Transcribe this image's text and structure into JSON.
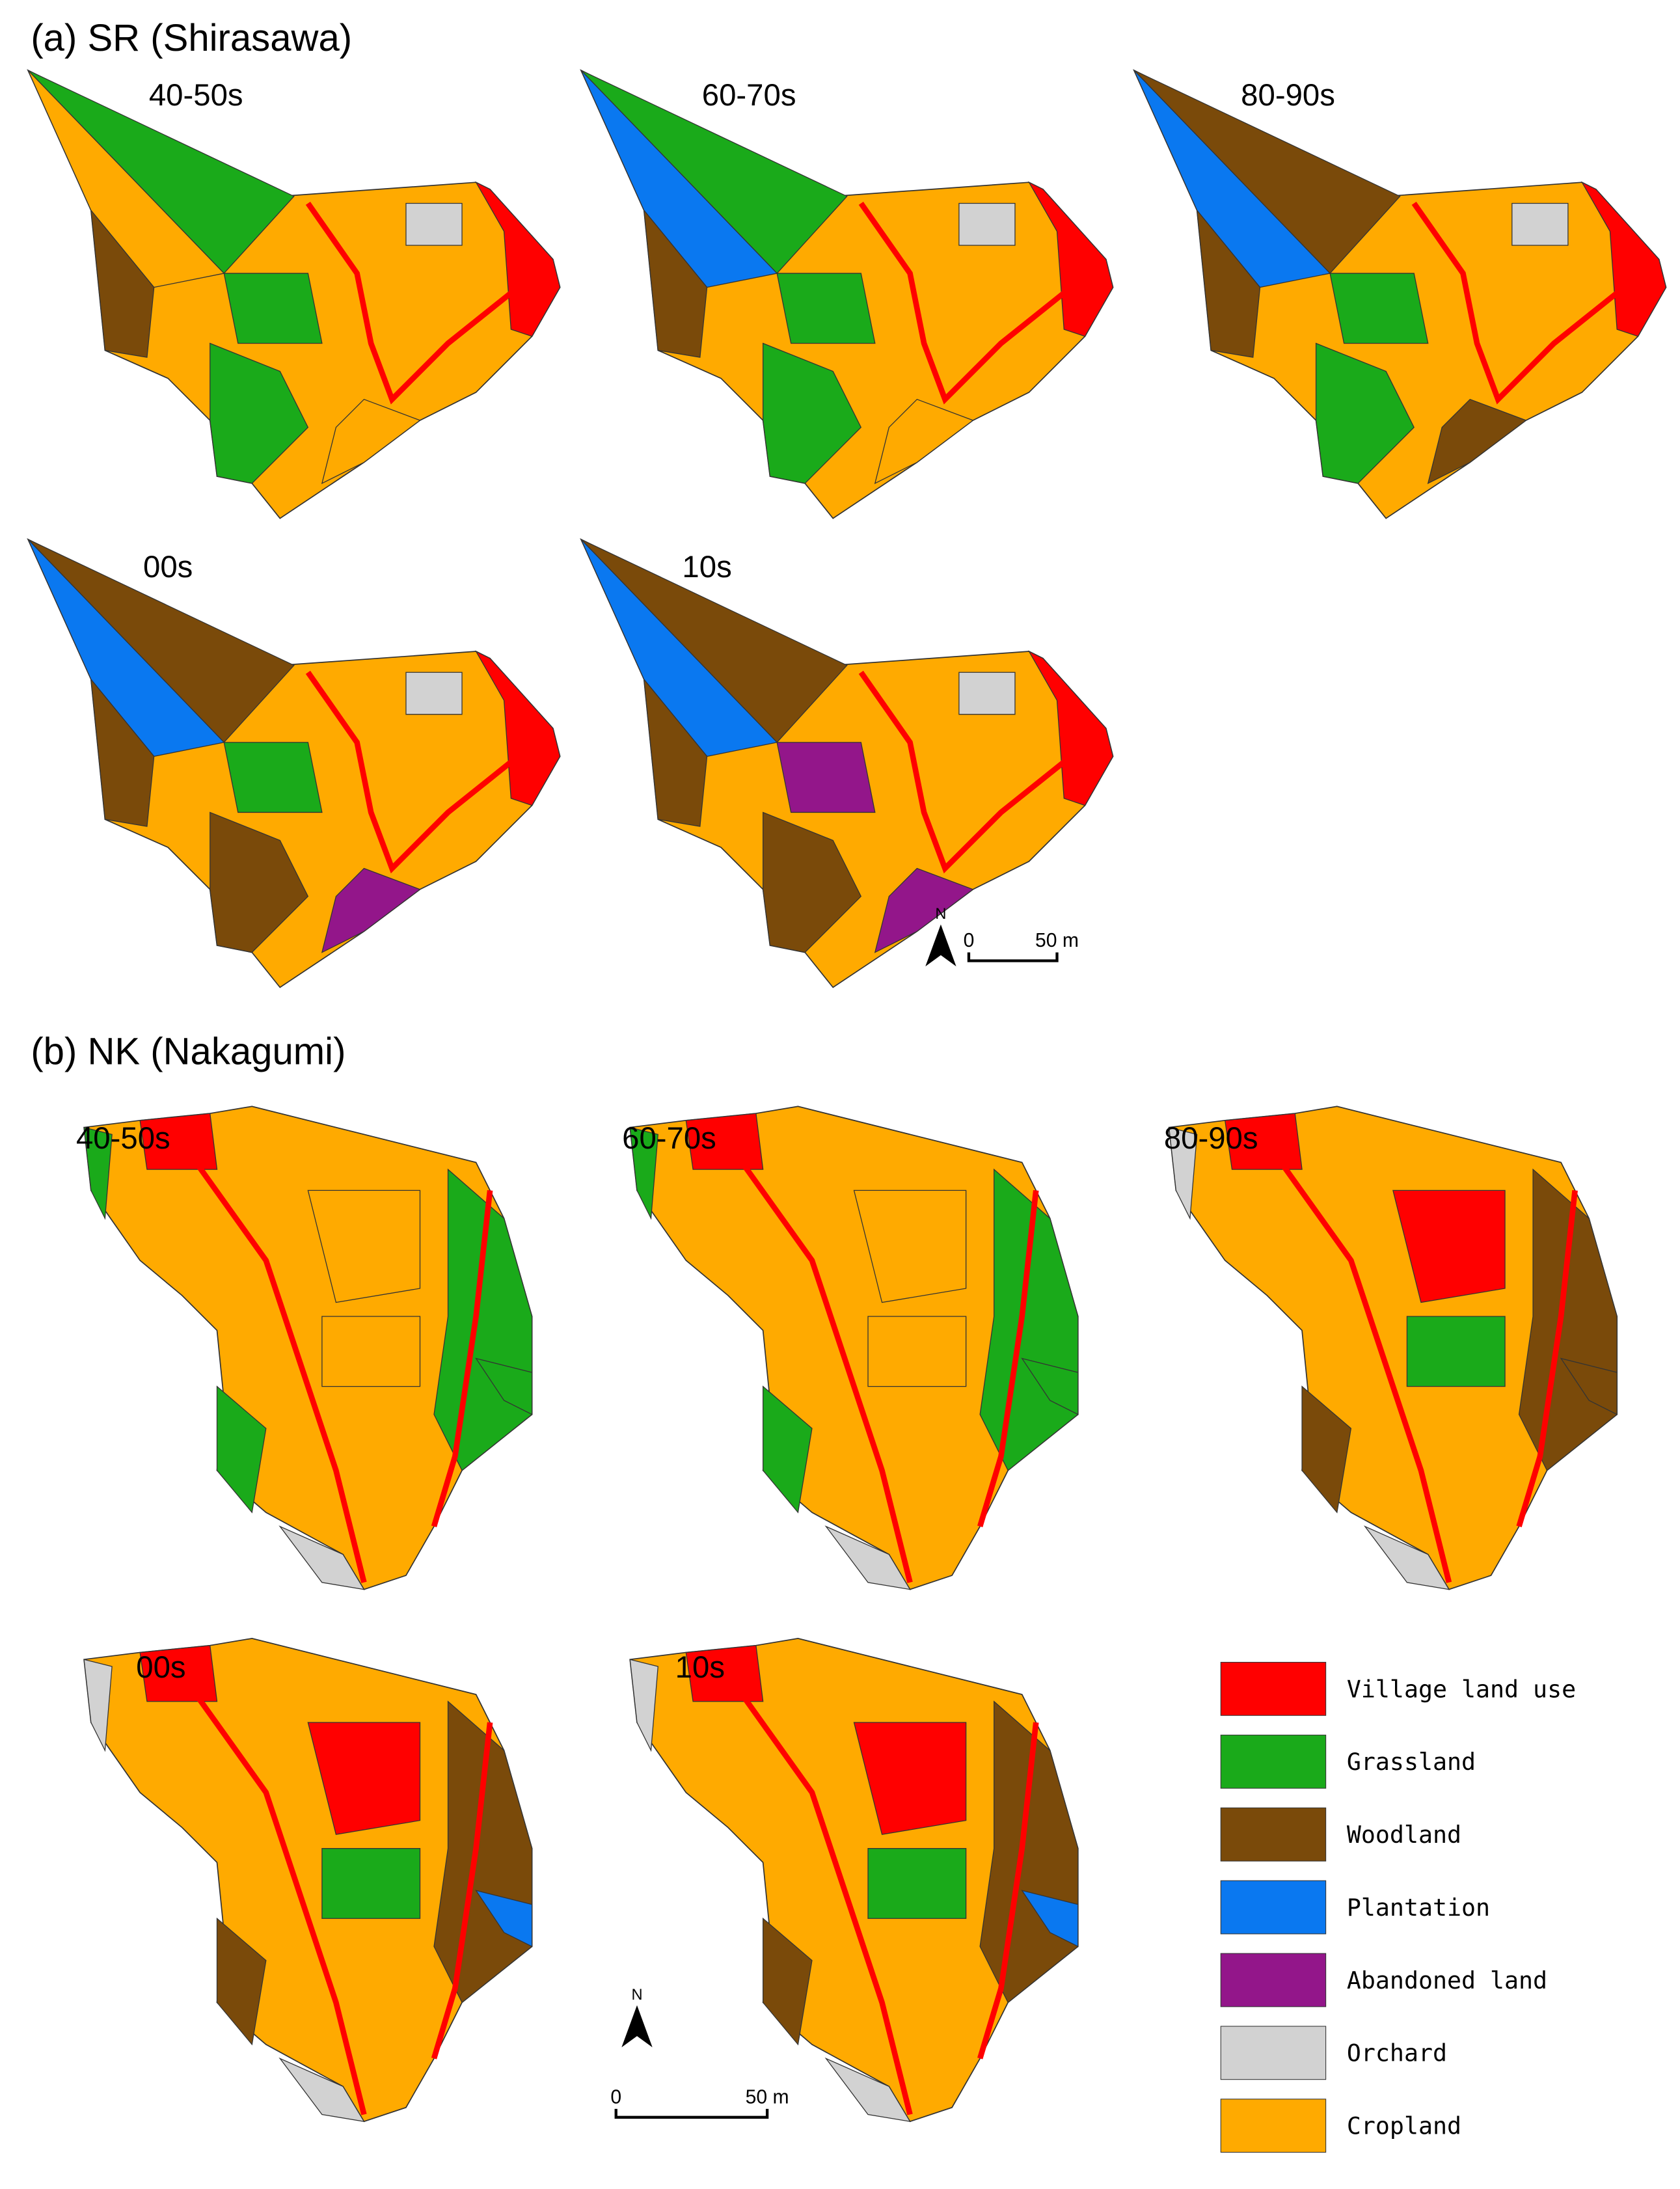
{
  "panels": [
    {
      "title": "(a) SR (Shirasawa)",
      "maps": [
        {
          "label": "40-50s"
        },
        {
          "label": "60-70s"
        },
        {
          "label": "80-90s"
        },
        {
          "label": "00s"
        },
        {
          "label": "10s"
        }
      ],
      "scale_bar": {
        "north": "N",
        "zero": "0",
        "distance": "50 m"
      }
    },
    {
      "title": "(b) NK (Nakagumi)",
      "maps": [
        {
          "label": "40-50s"
        },
        {
          "label": "60-70s"
        },
        {
          "label": "80-90s"
        },
        {
          "label": "00s"
        },
        {
          "label": "10s"
        }
      ],
      "scale_bar": {
        "north": "N",
        "zero": "0",
        "distance": "50 m"
      }
    }
  ],
  "legend": {
    "items": [
      {
        "label": "Village land use",
        "color": "#ff0000"
      },
      {
        "label": "Grassland",
        "color": "#1aaa1a"
      },
      {
        "label": "Woodland",
        "color": "#7a4a0a"
      },
      {
        "label": "Plantation",
        "color": "#0a78f0"
      },
      {
        "label": "Abandoned land",
        "color": "#93168a"
      },
      {
        "label": "Orchard",
        "color": "#d2d2d2"
      },
      {
        "label": "Cropland",
        "color": "#ffaa00"
      }
    ]
  }
}
